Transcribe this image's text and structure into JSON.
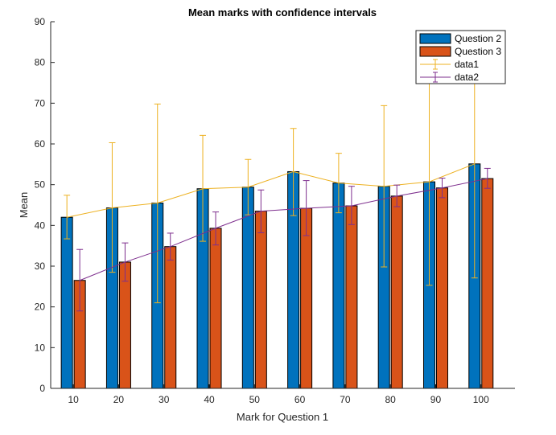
{
  "chart_data": {
    "type": "bar",
    "title": "Mean marks with confidence intervals",
    "xlabel": "Mark for Question 1",
    "ylabel": "Mean",
    "ylim": [
      0,
      90
    ],
    "yticks": [
      0,
      10,
      20,
      30,
      40,
      50,
      60,
      70,
      80,
      90
    ],
    "categories": [
      "10",
      "20",
      "30",
      "40",
      "50",
      "60",
      "70",
      "80",
      "90",
      "100"
    ],
    "grid": false,
    "legend_position": "top-right",
    "series": [
      {
        "name": "Question 2",
        "kind": "bar",
        "color": "#0072BD",
        "values": [
          42,
          44.3,
          45.5,
          49,
          49.4,
          53.2,
          50.4,
          49.6,
          50.7,
          55.1
        ]
      },
      {
        "name": "Question 3",
        "kind": "bar",
        "color": "#D95319",
        "values": [
          26.5,
          31,
          34.8,
          39.3,
          43.5,
          44.2,
          44.8,
          47.2,
          49.2,
          51.5
        ]
      },
      {
        "name": "data1",
        "kind": "errorbar",
        "color": "#EDB120",
        "values": [
          42,
          44.3,
          45.5,
          49,
          49.4,
          53.2,
          50.4,
          49.6,
          50.7,
          55.1
        ],
        "lower": [
          36.7,
          28.5,
          21,
          36.1,
          42.6,
          42.4,
          43.1,
          29.8,
          25.3,
          27.1
        ],
        "upper": [
          47.4,
          60.3,
          69.8,
          62.1,
          56.2,
          63.8,
          57.7,
          69.4,
          76.1,
          83
        ]
      },
      {
        "name": "data2",
        "kind": "errorbar",
        "color": "#7E2F8E",
        "values": [
          26.5,
          31,
          34.8,
          39.3,
          43.5,
          44.2,
          44.8,
          47.2,
          49.2,
          51.5
        ],
        "lower": [
          19,
          26.3,
          31.5,
          35.2,
          38.2,
          37.5,
          40.2,
          44.6,
          46.8,
          49.1
        ],
        "upper": [
          34.1,
          35.7,
          38.1,
          43.3,
          48.7,
          51,
          49.6,
          49.9,
          51.6,
          54
        ]
      }
    ]
  }
}
